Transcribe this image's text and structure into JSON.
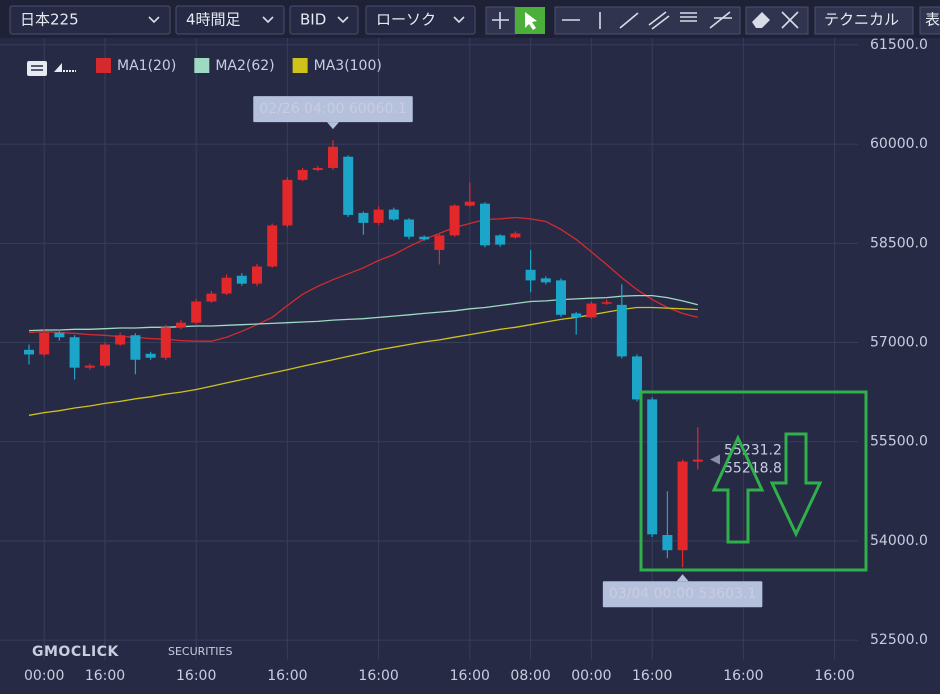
{
  "toolbar": {
    "symbol": "日本225",
    "interval": "4時間足",
    "side": "BID",
    "chart_style": "ローソク",
    "technical": "テクニカル",
    "more": "表"
  },
  "chart_data": {
    "type": "candlestick",
    "watermark": [
      "GMOCLICK",
      "SECURITIES"
    ],
    "categories": [
      null,
      "00:00",
      null,
      null,
      null,
      "16:00",
      null,
      null,
      null,
      null,
      null,
      "16:00",
      null,
      null,
      null,
      null,
      null,
      "16:00",
      null,
      null,
      null,
      null,
      null,
      "16:00",
      null,
      null,
      null,
      null,
      null,
      "16:00",
      null,
      null,
      null,
      "08:00",
      null,
      null,
      null,
      "00:00",
      null,
      null,
      null,
      "16:00",
      null,
      null,
      null,
      null,
      null,
      "16:00",
      null,
      null,
      null,
      null,
      null,
      "16:00",
      null,
      null
    ],
    "up_color": "#e3282c",
    "down_color": "#1ba6c9",
    "open": [
      56890,
      56820,
      57150,
      57080,
      56620,
      56650,
      56970,
      57110,
      56830,
      56770,
      57230,
      57300,
      57620,
      57740,
      58010,
      57890,
      58150,
      58770,
      59460,
      59610,
      59640,
      59810,
      58960,
      58810,
      59010,
      58860,
      58600,
      58400,
      58620,
      59070,
      59100,
      58620,
      58590,
      58100,
      57970,
      57940,
      57440,
      57380,
      57590,
      57570,
      56790,
      56140,
      54090,
      53860,
      55200,
      null,
      null,
      null,
      null,
      null,
      null,
      null,
      null,
      null,
      null,
      null
    ],
    "high": [
      56970,
      57200,
      57200,
      57110,
      56680,
      57000,
      57150,
      57140,
      56860,
      57270,
      57340,
      57660,
      57780,
      58030,
      58050,
      58190,
      58800,
      59500,
      59640,
      59670,
      60060.1,
      59830,
      58980,
      59060,
      59040,
      58880,
      58620,
      58640,
      59090,
      59420,
      59120,
      58640,
      58680,
      58400,
      58000,
      57970,
      57460,
      57620,
      57650,
      57880,
      56820,
      56170,
      54750,
      55230,
      55720,
      null,
      null,
      null,
      null,
      null,
      null,
      null,
      null,
      null,
      null,
      null
    ],
    "low": [
      56670,
      56790,
      57030,
      56440,
      56590,
      56620,
      56950,
      56520,
      56740,
      56740,
      57200,
      57280,
      57600,
      57720,
      57860,
      57850,
      58130,
      58740,
      59440,
      59590,
      59610,
      58900,
      58630,
      58780,
      58840,
      58560,
      58540,
      58180,
      58600,
      59050,
      58440,
      58450,
      58570,
      57760,
      57880,
      57390,
      57120,
      57360,
      57570,
      56760,
      56110,
      54060,
      53740,
      53603.1,
      55080,
      null,
      null,
      null,
      null,
      null,
      null,
      null,
      null,
      null,
      null,
      null
    ],
    "close": [
      56820,
      57150,
      57080,
      56620,
      56650,
      56970,
      57110,
      56740,
      56770,
      57230,
      57300,
      57620,
      57740,
      57980,
      57890,
      58150,
      58770,
      59460,
      59610,
      59640,
      59960,
      58930,
      58810,
      59010,
      58860,
      58600,
      58560,
      58620,
      59070,
      59130,
      58470,
      58480,
      58650,
      57940,
      57910,
      57420,
      57380,
      57590,
      57610,
      56790,
      56140,
      54100,
      53860,
      55200,
      55230,
      null,
      null,
      null,
      null,
      null,
      null,
      null,
      null,
      null,
      null,
      null
    ],
    "series": [
      {
        "name": "MA1(20)",
        "color": "#d42a2e",
        "values": [
          57150,
          57170,
          57150,
          57140,
          57120,
          57110,
          57090,
          57080,
          57060,
          57050,
          57030,
          57020,
          57020,
          57080,
          57170,
          57270,
          57380,
          57560,
          57730,
          57850,
          57950,
          58040,
          58130,
          58240,
          58330,
          58450,
          58560,
          58650,
          58740,
          58800,
          58860,
          58870,
          58890,
          58870,
          58830,
          58710,
          58560,
          58370,
          58180,
          57980,
          57800,
          57650,
          57530,
          57440,
          57380,
          null,
          null,
          null,
          null,
          null,
          null,
          null,
          null,
          null,
          null,
          null
        ]
      },
      {
        "name": "MA2(62)",
        "color": "#9ed9c2",
        "values": [
          57180,
          57190,
          57190,
          57200,
          57200,
          57210,
          57220,
          57220,
          57230,
          57230,
          57240,
          57250,
          57250,
          57260,
          57270,
          57280,
          57290,
          57300,
          57310,
          57320,
          57340,
          57350,
          57360,
          57380,
          57400,
          57420,
          57440,
          57460,
          57480,
          57510,
          57530,
          57560,
          57590,
          57620,
          57630,
          57650,
          57660,
          57670,
          57680,
          57700,
          57710,
          57710,
          57680,
          57630,
          57570,
          null,
          null,
          null,
          null,
          null,
          null,
          null,
          null,
          null,
          null,
          null
        ]
      },
      {
        "name": "MA3(100)",
        "color": "#cfc21a",
        "values": [
          55900,
          55940,
          55970,
          56010,
          56040,
          56080,
          56110,
          56150,
          56180,
          56220,
          56250,
          56290,
          56340,
          56390,
          56440,
          56490,
          56540,
          56590,
          56640,
          56690,
          56740,
          56790,
          56840,
          56890,
          56930,
          56970,
          57010,
          57040,
          57080,
          57120,
          57160,
          57200,
          57230,
          57270,
          57310,
          57350,
          57380,
          57420,
          57460,
          57500,
          57530,
          57530,
          57520,
          57510,
          57500,
          null,
          null,
          null,
          null,
          null,
          null,
          null,
          null,
          null,
          null,
          null
        ]
      }
    ],
    "ylim": [
      52200,
      61650
    ],
    "yticks": [
      {
        "value": 52500,
        "label": "52500.0"
      },
      {
        "value": 54000,
        "label": "54000.0"
      },
      {
        "value": 55500,
        "label": "55500.0"
      },
      {
        "value": 57000,
        "label": "57000.0"
      },
      {
        "value": 58500,
        "label": "58500.0"
      },
      {
        "value": 60000,
        "label": "60000.0"
      },
      {
        "value": 61500,
        "label": "61500.0"
      }
    ],
    "grid": true,
    "annotations": [
      {
        "value": 60060.1,
        "label": "02/26 04:00 60060.1"
      },
      {
        "value": 53603.1,
        "label": "03/04 00:00 53603.1"
      }
    ],
    "price_tags": [
      {
        "value": 55231.2,
        "label": "55231.2"
      },
      {
        "value": 55218.8,
        "label": "55218.8"
      }
    ]
  }
}
